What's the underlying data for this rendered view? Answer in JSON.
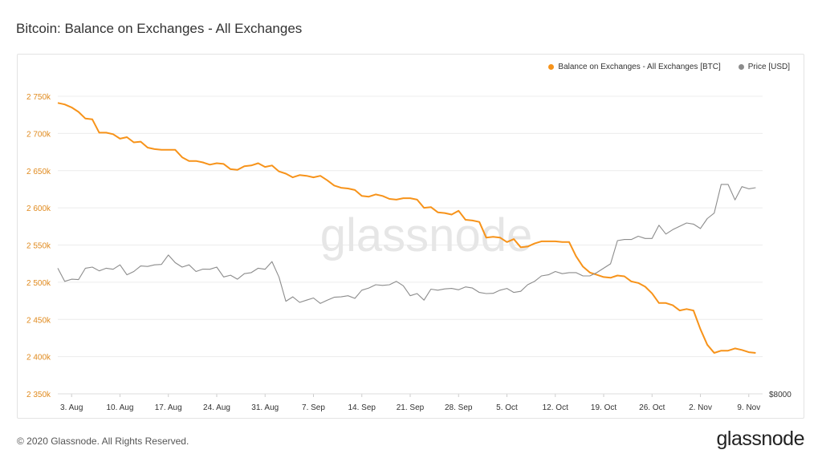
{
  "page": {
    "title": "Bitcoin: Balance on Exchanges - All Exchanges",
    "copyright": "© 2020 Glassnode. All Rights Reserved.",
    "brand": "glassnode",
    "watermark": "glassnode"
  },
  "chart_data": {
    "type": "line",
    "title": "Bitcoin: Balance on Exchanges - All Exchanges",
    "xlabel": "",
    "ylabel": "",
    "y_ticks": [
      2350000,
      2400000,
      2450000,
      2500000,
      2550000,
      2600000,
      2650000,
      2700000,
      2750000
    ],
    "y_tick_labels": [
      "2 350k",
      "2 400k",
      "2 450k",
      "2 500k",
      "2 550k",
      "2 600k",
      "2 650k",
      "2 700k",
      "2 750k"
    ],
    "ylim": [
      2350000,
      2750000
    ],
    "x_ticks": [
      "2020-08-03",
      "2020-08-10",
      "2020-08-17",
      "2020-08-24",
      "2020-08-31",
      "2020-09-07",
      "2020-09-14",
      "2020-09-21",
      "2020-09-28",
      "2020-10-05",
      "2020-10-12",
      "2020-10-19",
      "2020-10-26",
      "2020-11-02",
      "2020-11-09"
    ],
    "x_tick_labels": [
      "3. Aug",
      "10. Aug",
      "17. Aug",
      "24. Aug",
      "31. Aug",
      "7. Sep",
      "14. Sep",
      "21. Sep",
      "28. Sep",
      "5. Oct",
      "12. Oct",
      "19. Oct",
      "26. Oct",
      "2. Nov",
      "9. Nov"
    ],
    "xlim": [
      "2020-08-01",
      "2020-11-11"
    ],
    "right_axis_label": "$8000",
    "grid": true,
    "legend_position": "top-right",
    "series": [
      {
        "name": "Balance on Exchanges - All Exchanges [BTC]",
        "color": "#f7931a",
        "axis": "left",
        "x": [
          "2020-08-01",
          "2020-08-02",
          "2020-08-03",
          "2020-08-04",
          "2020-08-05",
          "2020-08-06",
          "2020-08-07",
          "2020-08-08",
          "2020-08-09",
          "2020-08-10",
          "2020-08-11",
          "2020-08-12",
          "2020-08-13",
          "2020-08-14",
          "2020-08-15",
          "2020-08-16",
          "2020-08-17",
          "2020-08-18",
          "2020-08-19",
          "2020-08-20",
          "2020-08-21",
          "2020-08-22",
          "2020-08-23",
          "2020-08-24",
          "2020-08-25",
          "2020-08-26",
          "2020-08-27",
          "2020-08-28",
          "2020-08-29",
          "2020-08-30",
          "2020-08-31",
          "2020-09-01",
          "2020-09-02",
          "2020-09-03",
          "2020-09-04",
          "2020-09-05",
          "2020-09-06",
          "2020-09-07",
          "2020-09-08",
          "2020-09-09",
          "2020-09-10",
          "2020-09-11",
          "2020-09-12",
          "2020-09-13",
          "2020-09-14",
          "2020-09-15",
          "2020-09-16",
          "2020-09-17",
          "2020-09-18",
          "2020-09-19",
          "2020-09-20",
          "2020-09-21",
          "2020-09-22",
          "2020-09-23",
          "2020-09-24",
          "2020-09-25",
          "2020-09-26",
          "2020-09-27",
          "2020-09-28",
          "2020-09-29",
          "2020-09-30",
          "2020-10-01",
          "2020-10-02",
          "2020-10-03",
          "2020-10-04",
          "2020-10-05",
          "2020-10-06",
          "2020-10-07",
          "2020-10-08",
          "2020-10-09",
          "2020-10-10",
          "2020-10-11",
          "2020-10-12",
          "2020-10-13",
          "2020-10-14",
          "2020-10-15",
          "2020-10-16",
          "2020-10-17",
          "2020-10-18",
          "2020-10-19",
          "2020-10-20",
          "2020-10-21",
          "2020-10-22",
          "2020-10-23",
          "2020-10-24",
          "2020-10-25",
          "2020-10-26",
          "2020-10-27",
          "2020-10-28",
          "2020-10-29",
          "2020-10-30",
          "2020-10-31",
          "2020-11-01",
          "2020-11-02",
          "2020-11-03",
          "2020-11-04",
          "2020-11-05",
          "2020-11-06",
          "2020-11-07",
          "2020-11-08",
          "2020-11-09",
          "2020-11-10"
        ],
        "values": [
          2741000,
          2739000,
          2735000,
          2729000,
          2720000,
          2719000,
          2701000,
          2701000,
          2699000,
          2693000,
          2695000,
          2688000,
          2689000,
          2681000,
          2679000,
          2678000,
          2678000,
          2678000,
          2668000,
          2663000,
          2663000,
          2661000,
          2658000,
          2660000,
          2659000,
          2652000,
          2651000,
          2656000,
          2657000,
          2660000,
          2655000,
          2657000,
          2649000,
          2646000,
          2641000,
          2644000,
          2643000,
          2641000,
          2643000,
          2637000,
          2630000,
          2627000,
          2626000,
          2624000,
          2616000,
          2615000,
          2618000,
          2616000,
          2612000,
          2611000,
          2613000,
          2613000,
          2611000,
          2600000,
          2601000,
          2594000,
          2593000,
          2591000,
          2596000,
          2584000,
          2583000,
          2581000,
          2560000,
          2561000,
          2560000,
          2554000,
          2558000,
          2547000,
          2548000,
          2552000,
          2555000,
          2555000,
          2555000,
          2554000,
          2554000,
          2535000,
          2521000,
          2513000,
          2510000,
          2507000,
          2506000,
          2509000,
          2508000,
          2501000,
          2499000,
          2494000,
          2485000,
          2472000,
          2472000,
          2469000,
          2462000,
          2464000,
          2462000,
          2437000,
          2416000,
          2405000,
          2408000,
          2408000,
          2411000,
          2409000,
          2406000,
          2405000
        ]
      },
      {
        "name": "Price [USD]",
        "color": "#8c8c8c",
        "axis": "right",
        "x": [
          "2020-08-01",
          "2020-08-02",
          "2020-08-03",
          "2020-08-04",
          "2020-08-05",
          "2020-08-06",
          "2020-08-07",
          "2020-08-08",
          "2020-08-09",
          "2020-08-10",
          "2020-08-11",
          "2020-08-12",
          "2020-08-13",
          "2020-08-14",
          "2020-08-15",
          "2020-08-16",
          "2020-08-17",
          "2020-08-18",
          "2020-08-19",
          "2020-08-20",
          "2020-08-21",
          "2020-08-22",
          "2020-08-23",
          "2020-08-24",
          "2020-08-25",
          "2020-08-26",
          "2020-08-27",
          "2020-08-28",
          "2020-08-29",
          "2020-08-30",
          "2020-08-31",
          "2020-09-01",
          "2020-09-02",
          "2020-09-03",
          "2020-09-04",
          "2020-09-05",
          "2020-09-06",
          "2020-09-07",
          "2020-09-08",
          "2020-09-09",
          "2020-09-10",
          "2020-09-11",
          "2020-09-12",
          "2020-09-13",
          "2020-09-14",
          "2020-09-15",
          "2020-09-16",
          "2020-09-17",
          "2020-09-18",
          "2020-09-19",
          "2020-09-20",
          "2020-09-21",
          "2020-09-22",
          "2020-09-23",
          "2020-09-24",
          "2020-09-25",
          "2020-09-26",
          "2020-09-27",
          "2020-09-28",
          "2020-09-29",
          "2020-09-30",
          "2020-10-01",
          "2020-10-02",
          "2020-10-03",
          "2020-10-04",
          "2020-10-05",
          "2020-10-06",
          "2020-10-07",
          "2020-10-08",
          "2020-10-09",
          "2020-10-10",
          "2020-10-11",
          "2020-10-12",
          "2020-10-13",
          "2020-10-14",
          "2020-10-15",
          "2020-10-16",
          "2020-10-17",
          "2020-10-18",
          "2020-10-19",
          "2020-10-20",
          "2020-10-21",
          "2020-10-22",
          "2020-10-23",
          "2020-10-24",
          "2020-10-25",
          "2020-10-26",
          "2020-10-27",
          "2020-10-28",
          "2020-10-29",
          "2020-10-30",
          "2020-10-31",
          "2020-11-01",
          "2020-11-02",
          "2020-11-03",
          "2020-11-04",
          "2020-11-05",
          "2020-11-06",
          "2020-11-07",
          "2020-11-08",
          "2020-11-09",
          "2020-11-10"
        ],
        "values": [
          11700,
          11100,
          11200,
          11180,
          11700,
          11750,
          11580,
          11700,
          11650,
          11850,
          11400,
          11550,
          11800,
          11780,
          11850,
          11870,
          12300,
          11950,
          11750,
          11850,
          11550,
          11660,
          11650,
          11750,
          11300,
          11380,
          11200,
          11450,
          11500,
          11700,
          11650,
          12000,
          11300,
          10200,
          10400,
          10150,
          10250,
          10350,
          10100,
          10250,
          10380,
          10400,
          10450,
          10330,
          10700,
          10800,
          10950,
          10920,
          10950,
          11100,
          10900,
          10450,
          10550,
          10250,
          10750,
          10700,
          10760,
          10780,
          10720,
          10850,
          10800,
          10600,
          10550,
          10560,
          10700,
          10780,
          10600,
          10650,
          10950,
          11100,
          11350,
          11400,
          11550,
          11450,
          11500,
          11500,
          11350,
          11350,
          11500,
          11700,
          11900,
          12950,
          13000,
          13000,
          13150,
          13050,
          13050,
          13650,
          13250,
          13450,
          13600,
          13750,
          13700,
          13500,
          13950,
          14200,
          15500,
          15500,
          14800,
          15400,
          15300,
          15350
        ]
      }
    ]
  }
}
